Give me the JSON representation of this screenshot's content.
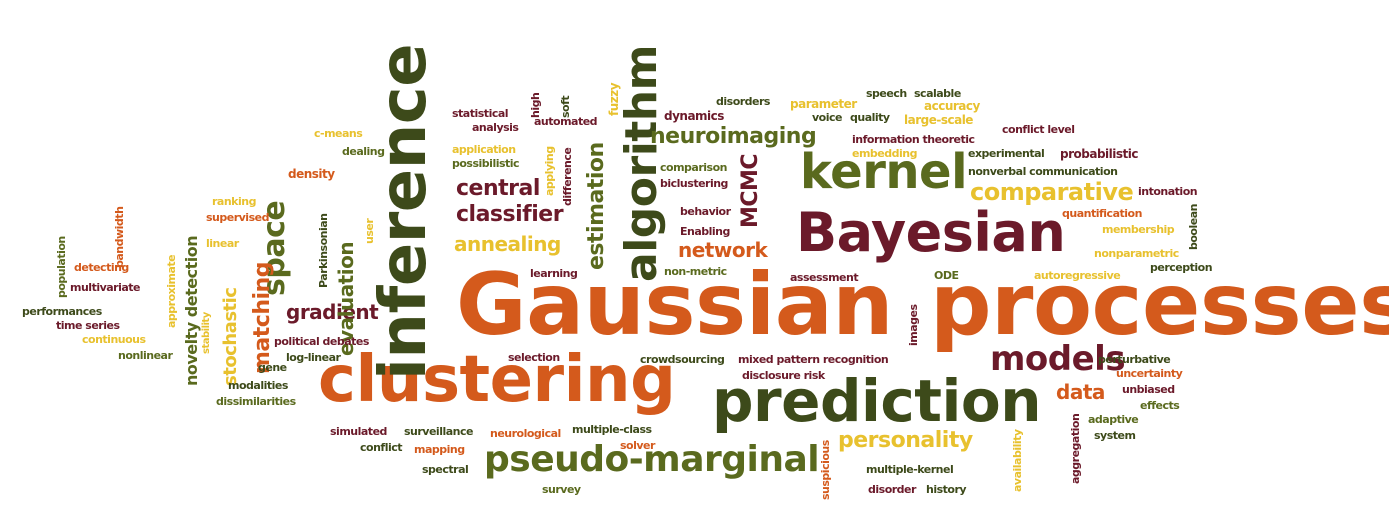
{
  "colors": {
    "orange": "#D45A1C",
    "olive": "#5A6A1E",
    "maroon": "#6B1A2A",
    "yellow": "#E8C12E",
    "darkgreen": "#3D4A1A"
  },
  "words": [
    {
      "text": "Gaussian",
      "size": 86,
      "color": "orange"
    },
    {
      "text": "processes",
      "size": 86,
      "color": "orange"
    },
    {
      "text": "clustering",
      "size": 64,
      "color": "orange"
    },
    {
      "text": "prediction",
      "size": 58,
      "color": "darkgreen"
    },
    {
      "text": "inference",
      "size": 64,
      "color": "darkgreen"
    },
    {
      "text": "Bayesian",
      "size": 54,
      "color": "maroon"
    },
    {
      "text": "kernel",
      "size": 48,
      "color": "olive"
    },
    {
      "text": "algorithm",
      "size": 44,
      "color": "darkgreen"
    },
    {
      "text": "pseudo-marginal",
      "size": 36,
      "color": "olive"
    },
    {
      "text": "models",
      "size": 34,
      "color": "maroon"
    },
    {
      "text": "space",
      "size": 30,
      "color": "olive"
    },
    {
      "text": "comparative",
      "size": 24,
      "color": "yellow"
    },
    {
      "text": "neuroimaging",
      "size": 22,
      "color": "olive"
    },
    {
      "text": "personality",
      "size": 22,
      "color": "yellow"
    },
    {
      "text": "central",
      "size": 22,
      "color": "maroon"
    },
    {
      "text": "classifier",
      "size": 22,
      "color": "maroon"
    },
    {
      "text": "annealing",
      "size": 20,
      "color": "yellow"
    },
    {
      "text": "network",
      "size": 20,
      "color": "orange"
    },
    {
      "text": "gradient",
      "size": 20,
      "color": "maroon"
    },
    {
      "text": "data",
      "size": 20,
      "color": "orange"
    },
    {
      "text": "estimation",
      "size": 22,
      "color": "olive"
    },
    {
      "text": "MCMC",
      "size": 22,
      "color": "maroon"
    },
    {
      "text": "matching",
      "size": 22,
      "color": "orange"
    },
    {
      "text": "evaluation",
      "size": 20,
      "color": "olive"
    },
    {
      "text": "stochastic",
      "size": 18,
      "color": "yellow"
    },
    {
      "text": "novelty detection",
      "size": 16,
      "color": "olive"
    },
    {
      "text": "statistical",
      "size": 11,
      "color": "maroon"
    },
    {
      "text": "analysis",
      "size": 11,
      "color": "maroon"
    },
    {
      "text": "high",
      "size": 11,
      "color": "maroon"
    },
    {
      "text": "automated",
      "size": 11,
      "color": "maroon"
    },
    {
      "text": "soft",
      "size": 11,
      "color": "darkgreen"
    },
    {
      "text": "fuzzy",
      "size": 12,
      "color": "yellow"
    },
    {
      "text": "dynamics",
      "size": 12,
      "color": "maroon"
    },
    {
      "text": "disorders",
      "size": 11,
      "color": "darkgreen"
    },
    {
      "text": "parameter",
      "size": 12,
      "color": "yellow"
    },
    {
      "text": "speech",
      "size": 11,
      "color": "darkgreen"
    },
    {
      "text": "scalable",
      "size": 11,
      "color": "darkgreen"
    },
    {
      "text": "accuracy",
      "size": 12,
      "color": "yellow"
    },
    {
      "text": "voice",
      "size": 11,
      "color": "darkgreen"
    },
    {
      "text": "quality",
      "size": 11,
      "color": "darkgreen"
    },
    {
      "text": "large-scale",
      "size": 12,
      "color": "yellow"
    },
    {
      "text": "conflict level",
      "size": 11,
      "color": "maroon"
    },
    {
      "text": "information theoretic",
      "size": 11,
      "color": "maroon"
    },
    {
      "text": "embedding",
      "size": 11,
      "color": "yellow"
    },
    {
      "text": "experimental",
      "size": 11,
      "color": "darkgreen"
    },
    {
      "text": "probabilistic",
      "size": 12,
      "color": "maroon"
    },
    {
      "text": "comparison",
      "size": 11,
      "color": "olive"
    },
    {
      "text": "nonverbal communication",
      "size": 11,
      "color": "darkgreen"
    },
    {
      "text": "biclustering",
      "size": 11,
      "color": "maroon"
    },
    {
      "text": "intonation",
      "size": 11,
      "color": "maroon"
    },
    {
      "text": "behavior",
      "size": 11,
      "color": "maroon"
    },
    {
      "text": "quantification",
      "size": 11,
      "color": "orange"
    },
    {
      "text": "Enabling",
      "size": 11,
      "color": "maroon"
    },
    {
      "text": "membership",
      "size": 11,
      "color": "yellow"
    },
    {
      "text": "boolean",
      "size": 11,
      "color": "darkgreen"
    },
    {
      "text": "nonparametric",
      "size": 11,
      "color": "yellow"
    },
    {
      "text": "non-metric",
      "size": 11,
      "color": "olive"
    },
    {
      "text": "assessment",
      "size": 11,
      "color": "maroon"
    },
    {
      "text": "ODE",
      "size": 11,
      "color": "olive"
    },
    {
      "text": "autoregressive",
      "size": 11,
      "color": "yellow"
    },
    {
      "text": "perception",
      "size": 11,
      "color": "darkgreen"
    },
    {
      "text": "learning",
      "size": 11,
      "color": "maroon"
    },
    {
      "text": "c-means",
      "size": 11,
      "color": "yellow"
    },
    {
      "text": "application",
      "size": 11,
      "color": "yellow"
    },
    {
      "text": "dealing",
      "size": 11,
      "color": "olive"
    },
    {
      "text": "possibilistic",
      "size": 11,
      "color": "olive"
    },
    {
      "text": "applying",
      "size": 11,
      "color": "yellow"
    },
    {
      "text": "difference",
      "size": 11,
      "color": "maroon"
    },
    {
      "text": "density",
      "size": 12,
      "color": "orange"
    },
    {
      "text": "ranking",
      "size": 11,
      "color": "yellow"
    },
    {
      "text": "supervised",
      "size": 11,
      "color": "orange"
    },
    {
      "text": "linear",
      "size": 11,
      "color": "yellow"
    },
    {
      "text": "user",
      "size": 11,
      "color": "yellow"
    },
    {
      "text": "Parkinsonian",
      "size": 11,
      "color": "darkgreen"
    },
    {
      "text": "bandwidth",
      "size": 11,
      "color": "orange"
    },
    {
      "text": "population",
      "size": 11,
      "color": "olive"
    },
    {
      "text": "detecting",
      "size": 11,
      "color": "orange"
    },
    {
      "text": "multivariate",
      "size": 11,
      "color": "maroon"
    },
    {
      "text": "approximate",
      "size": 11,
      "color": "yellow"
    },
    {
      "text": "performances",
      "size": 11,
      "color": "darkgreen"
    },
    {
      "text": "time series",
      "size": 11,
      "color": "maroon"
    },
    {
      "text": "continuous",
      "size": 11,
      "color": "yellow"
    },
    {
      "text": "stability",
      "size": 10,
      "color": "yellow"
    },
    {
      "text": "nonlinear",
      "size": 11,
      "color": "olive"
    },
    {
      "text": "gene",
      "size": 11,
      "color": "darkgreen"
    },
    {
      "text": "political debates",
      "size": 11,
      "color": "maroon"
    },
    {
      "text": "log-linear",
      "size": 11,
      "color": "darkgreen"
    },
    {
      "text": "modalities",
      "size": 11,
      "color": "darkgreen"
    },
    {
      "text": "dissimilarities",
      "size": 11,
      "color": "olive"
    },
    {
      "text": "images",
      "size": 11,
      "color": "maroon"
    },
    {
      "text": "selection",
      "size": 11,
      "color": "maroon"
    },
    {
      "text": "crowdsourcing",
      "size": 11,
      "color": "darkgreen"
    },
    {
      "text": "mixed pattern recognition",
      "size": 11,
      "color": "maroon"
    },
    {
      "text": "disclosure risk",
      "size": 11,
      "color": "maroon"
    },
    {
      "text": "perturbative",
      "size": 11,
      "color": "darkgreen"
    },
    {
      "text": "uncertainty",
      "size": 11,
      "color": "orange"
    },
    {
      "text": "unbiased",
      "size": 11,
      "color": "maroon"
    },
    {
      "text": "effects",
      "size": 11,
      "color": "olive"
    },
    {
      "text": "adaptive",
      "size": 11,
      "color": "olive"
    },
    {
      "text": "system",
      "size": 11,
      "color": "darkgreen"
    },
    {
      "text": "simulated",
      "size": 11,
      "color": "maroon"
    },
    {
      "text": "surveillance",
      "size": 11,
      "color": "darkgreen"
    },
    {
      "text": "neurological",
      "size": 11,
      "color": "orange"
    },
    {
      "text": "multiple-class",
      "size": 11,
      "color": "darkgreen"
    },
    {
      "text": "conflict",
      "size": 11,
      "color": "darkgreen"
    },
    {
      "text": "mapping",
      "size": 11,
      "color": "orange"
    },
    {
      "text": "solver",
      "size": 11,
      "color": "orange"
    },
    {
      "text": "spectral",
      "size": 11,
      "color": "darkgreen"
    },
    {
      "text": "survey",
      "size": 11,
      "color": "olive"
    },
    {
      "text": "suspicious",
      "size": 11,
      "color": "orange"
    },
    {
      "text": "multiple-kernel",
      "size": 11,
      "color": "darkgreen"
    },
    {
      "text": "disorder",
      "size": 11,
      "color": "maroon"
    },
    {
      "text": "history",
      "size": 11,
      "color": "darkgreen"
    },
    {
      "text": "availability",
      "size": 11,
      "color": "yellow"
    },
    {
      "text": "aggregation",
      "size": 11,
      "color": "maroon"
    }
  ]
}
